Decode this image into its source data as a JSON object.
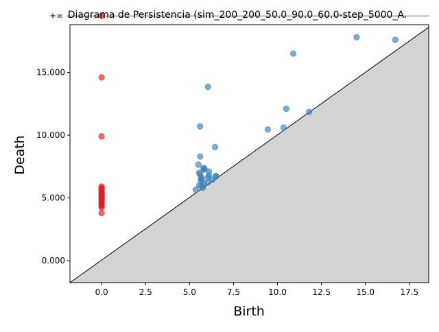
{
  "chart_data": {
    "type": "scatter",
    "title": "Diagrama de Persistencia (sim_200_200_50.0_90.0_60.0-step_5000_A.",
    "xlabel": "Birth",
    "ylabel": "Death",
    "xlim": [
      -1.8,
      18.6
    ],
    "ylim": [
      -1.75,
      18.8
    ],
    "x_ticks": [
      0.0,
      2.5,
      5.0,
      7.5,
      10.0,
      12.5,
      15.0,
      17.5
    ],
    "x_tick_labels": [
      "0.0",
      "2.5",
      "5.0",
      "7.5",
      "10.0",
      "12.5",
      "15.0",
      "17.5"
    ],
    "y_ticks": [
      0,
      5,
      10,
      15
    ],
    "y_tick_labels": [
      "0.000",
      "5.000",
      "10.000",
      "15.000"
    ],
    "infinity_level": 19.5,
    "infinity_label": "+∞",
    "diagonal": true,
    "grid": false,
    "legend": "none",
    "colors": {
      "h0": "#e41a1c",
      "h1": "#377eb8",
      "diagonal_fill": "#d3d3d3",
      "infinity_line": "#666666"
    },
    "series": [
      {
        "color": "#e41a1c",
        "points": [
          [
            0,
            19.5
          ],
          [
            0,
            14.6
          ],
          [
            0,
            9.9
          ],
          [
            0,
            5.9
          ],
          [
            0,
            5.8
          ],
          [
            0,
            5.7
          ],
          [
            0,
            5.55
          ],
          [
            0,
            5.45
          ],
          [
            0,
            5.35
          ],
          [
            0,
            5.25
          ],
          [
            0,
            5.15
          ],
          [
            0,
            5.05
          ],
          [
            0,
            4.95
          ],
          [
            0,
            4.85
          ],
          [
            0,
            4.75
          ],
          [
            0,
            4.65
          ],
          [
            0,
            4.55
          ],
          [
            0,
            4.45
          ],
          [
            0,
            4.35
          ],
          [
            0,
            4.25
          ],
          [
            0,
            3.8
          ]
        ]
      },
      {
        "color": "#377eb8",
        "points": [
          [
            14.5,
            17.8
          ],
          [
            16.7,
            17.6
          ],
          [
            10.9,
            16.5
          ],
          [
            6.05,
            13.85
          ],
          [
            10.5,
            12.1
          ],
          [
            11.8,
            11.85
          ],
          [
            5.6,
            10.7
          ],
          [
            9.45,
            10.45
          ],
          [
            10.35,
            10.6
          ],
          [
            6.45,
            9.05
          ],
          [
            5.6,
            8.3
          ],
          [
            5.5,
            7.65
          ],
          [
            5.8,
            7.4
          ],
          [
            5.85,
            7.3
          ],
          [
            6.1,
            7.1
          ],
          [
            5.55,
            7.0
          ],
          [
            5.6,
            6.85
          ],
          [
            6.5,
            6.75
          ],
          [
            6.05,
            6.6
          ],
          [
            5.65,
            6.5
          ],
          [
            6.5,
            6.7
          ],
          [
            5.65,
            6.35
          ],
          [
            6.3,
            6.45
          ],
          [
            5.8,
            6.2
          ],
          [
            6.05,
            6.25
          ],
          [
            5.55,
            6.0
          ],
          [
            5.7,
            5.95
          ],
          [
            5.75,
            5.8
          ],
          [
            5.35,
            5.65
          ],
          [
            5.8,
            7.25
          ],
          [
            6.1,
            6.8
          ],
          [
            5.7,
            6.6
          ]
        ]
      }
    ]
  }
}
